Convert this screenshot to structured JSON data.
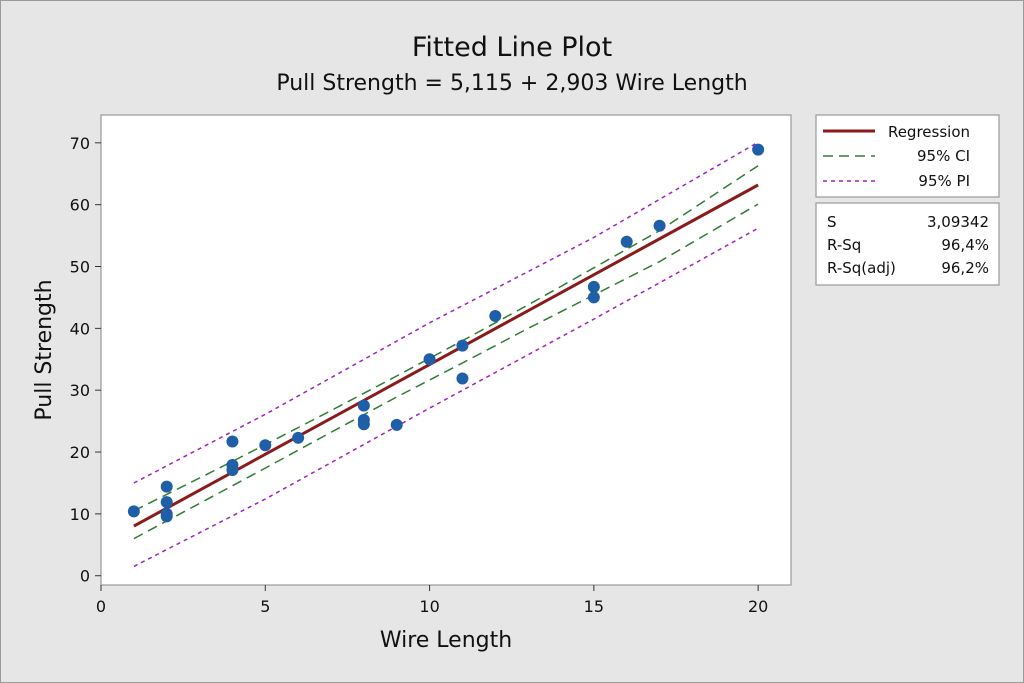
{
  "chart_data": {
    "type": "scatter",
    "title": "Fitted Line Plot",
    "subtitle": "Pull Strength = 5,115 + 2,903 Wire Length",
    "xlabel": "Wire Length",
    "ylabel": "Pull Strength",
    "xlim": [
      0,
      21
    ],
    "ylim": [
      -1.5,
      74.5
    ],
    "xticks": [
      0,
      5,
      10,
      15,
      20
    ],
    "yticks": [
      0,
      10,
      20,
      30,
      40,
      50,
      60,
      70
    ],
    "grid": false,
    "legend_position": "top-right",
    "points": [
      {
        "x": 1,
        "y": 10.4
      },
      {
        "x": 2,
        "y": 14.4
      },
      {
        "x": 2,
        "y": 11.9
      },
      {
        "x": 2,
        "y": 10.0
      },
      {
        "x": 2,
        "y": 9.6
      },
      {
        "x": 4,
        "y": 21.7
      },
      {
        "x": 4,
        "y": 17.9
      },
      {
        "x": 4,
        "y": 17.1
      },
      {
        "x": 5,
        "y": 21.1
      },
      {
        "x": 6,
        "y": 22.3
      },
      {
        "x": 8,
        "y": 27.5
      },
      {
        "x": 8,
        "y": 25.2
      },
      {
        "x": 8,
        "y": 24.5
      },
      {
        "x": 9,
        "y": 24.4
      },
      {
        "x": 10,
        "y": 35.0
      },
      {
        "x": 11,
        "y": 37.2
      },
      {
        "x": 11,
        "y": 31.9
      },
      {
        "x": 12,
        "y": 42.0
      },
      {
        "x": 15,
        "y": 46.7
      },
      {
        "x": 15,
        "y": 45.0
      },
      {
        "x": 16,
        "y": 54.0
      },
      {
        "x": 17,
        "y": 56.6
      },
      {
        "x": 20,
        "y": 68.9
      }
    ],
    "series": [
      {
        "name": "Regression",
        "color": "#8b1a1a",
        "style": "solid",
        "x": [
          1,
          20
        ],
        "y": [
          8.018,
          63.175
        ]
      },
      {
        "name": "95% CI",
        "color": "#2e7d32",
        "style": "dash",
        "x": [
          1,
          3,
          5,
          7,
          9,
          11,
          13,
          15,
          17,
          20
        ],
        "upper": [
          10.5,
          15.8,
          21.2,
          26.7,
          32.3,
          38.0,
          43.8,
          49.8,
          55.8,
          66.3
        ],
        "lower": [
          6.0,
          11.7,
          17.4,
          23.2,
          28.9,
          34.4,
          40.0,
          45.4,
          50.8,
          60.1
        ]
      },
      {
        "name": "95% PI",
        "color": "#a020c0",
        "style": "dot",
        "x": [
          1,
          5,
          10,
          15,
          20
        ],
        "upper": [
          15.0,
          26.1,
          40.9,
          54.7,
          70.1
        ],
        "lower": [
          1.5,
          12.4,
          27.1,
          41.5,
          56.2
        ]
      }
    ],
    "stats": [
      {
        "label": "S",
        "value": "3,09342"
      },
      {
        "label": "R-Sq",
        "value": "96,4%"
      },
      {
        "label": "R-Sq(adj)",
        "value": "96,2%"
      }
    ],
    "colors": {
      "background": "#e6e6e6",
      "plot_area": "#ffffff",
      "points": "#1f5fa8",
      "border": "#9a9a9a"
    }
  }
}
